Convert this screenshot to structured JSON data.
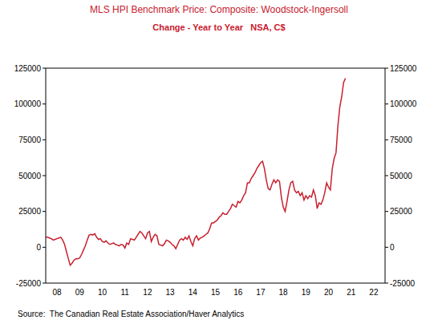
{
  "chart_data": {
    "type": "line",
    "title": "MLS HPI Benchmark Price: Composite: Woodstock-Ingersoll",
    "subtitle": "Change - Year to Year   NSA, C$",
    "source": "Source:  The Canadian Real Estate Association/Haver Analytics",
    "color": "#c8202e",
    "grid": false,
    "x": [
      2008,
      2008.083,
      2008.167,
      2008.25,
      2008.333,
      2008.417,
      2008.5,
      2008.583,
      2008.667,
      2008.75,
      2008.833,
      2008.917,
      2009,
      2009.083,
      2009.167,
      2009.25,
      2009.333,
      2009.417,
      2009.5,
      2009.583,
      2009.667,
      2009.75,
      2009.833,
      2009.917,
      2010,
      2010.083,
      2010.167,
      2010.25,
      2010.333,
      2010.417,
      2010.5,
      2010.583,
      2010.667,
      2010.75,
      2010.833,
      2010.917,
      2011,
      2011.083,
      2011.167,
      2011.25,
      2011.333,
      2011.417,
      2011.5,
      2011.583,
      2011.667,
      2011.75,
      2011.833,
      2011.917,
      2012,
      2012.083,
      2012.167,
      2012.25,
      2012.333,
      2012.417,
      2012.5,
      2012.583,
      2012.667,
      2012.75,
      2012.833,
      2012.917,
      2013,
      2013.083,
      2013.167,
      2013.25,
      2013.333,
      2013.417,
      2013.5,
      2013.583,
      2013.667,
      2013.75,
      2013.833,
      2013.917,
      2014,
      2014.083,
      2014.167,
      2014.25,
      2014.333,
      2014.417,
      2014.5,
      2014.583,
      2014.667,
      2014.75,
      2014.833,
      2014.917,
      2015,
      2015.083,
      2015.167,
      2015.25,
      2015.333,
      2015.417,
      2015.5,
      2015.583,
      2015.667,
      2015.75,
      2015.833,
      2015.917,
      2016,
      2016.083,
      2016.167,
      2016.25,
      2016.333,
      2016.417,
      2016.5,
      2016.583,
      2016.667,
      2016.75,
      2016.833,
      2016.917,
      2017,
      2017.083,
      2017.167,
      2017.25,
      2017.333,
      2017.417,
      2017.5,
      2017.583,
      2017.667,
      2017.75,
      2017.833,
      2017.917,
      2018,
      2018.083,
      2018.167,
      2018.25,
      2018.333,
      2018.417,
      2018.5,
      2018.583,
      2018.667,
      2018.75,
      2018.833,
      2018.917,
      2019,
      2019.083,
      2019.167,
      2019.25,
      2019.333,
      2019.417,
      2019.5,
      2019.583,
      2019.667,
      2019.75,
      2019.833,
      2019.917,
      2020,
      2020.083,
      2020.167,
      2020.25,
      2020.333,
      2020.417,
      2020.5,
      2020.583,
      2020.667,
      2020.75,
      2020.833,
      2020.917,
      2021,
      2021.083,
      2021.167,
      2021.25
    ],
    "values": [
      7000,
      7000,
      6500,
      6000,
      5000,
      5500,
      6000,
      6500,
      7000,
      5000,
      2000,
      -3000,
      -8000,
      -12500,
      -11000,
      -9000,
      -8000,
      -8000,
      -7500,
      -5000,
      -2000,
      1000,
      5000,
      8500,
      9000,
      8500,
      9500,
      7000,
      5500,
      6000,
      4000,
      3500,
      4500,
      3000,
      2000,
      2500,
      3000,
      2000,
      1500,
      1000,
      2000,
      1500,
      -500,
      3000,
      2000,
      6000,
      5500,
      5000,
      7000,
      9000,
      11000,
      10000,
      8000,
      6000,
      10000,
      11000,
      4000,
      7000,
      9000,
      8000,
      2000,
      1500,
      1000,
      2500,
      5000,
      4500,
      3500,
      2000,
      1000,
      -1000,
      2000,
      5000,
      6000,
      5000,
      7000,
      5500,
      8000,
      4000,
      1000,
      6000,
      8000,
      5000,
      6500,
      7000,
      8000,
      9000,
      10000,
      13000,
      17000,
      17000,
      18000,
      19000,
      21000,
      22000,
      24000,
      23000,
      23000,
      25000,
      27000,
      30000,
      29000,
      28000,
      32000,
      31000,
      33000,
      36000,
      38000,
      45000,
      45000,
      48000,
      50000,
      52000,
      55000,
      57000,
      59000,
      60000,
      55000,
      47000,
      41000,
      40000,
      44000,
      47000,
      45000,
      47000,
      46000,
      35000,
      28000,
      25000,
      32000,
      40000,
      45000,
      46000,
      40000,
      38000,
      39000,
      36000,
      38000,
      33000,
      36000,
      34000,
      36000,
      35000,
      40000,
      36000,
      27000,
      31000,
      30000,
      33000,
      38000,
      45000,
      42000,
      40000,
      55000,
      62000,
      66000,
      85000,
      98000,
      105000,
      115000,
      118000
    ],
    "xlim": [
      2008,
      2023
    ],
    "xticks": [
      {
        "value": 2008.5,
        "label": "08"
      },
      {
        "value": 2009.5,
        "label": "09"
      },
      {
        "value": 2010.5,
        "label": "10"
      },
      {
        "value": 2011.5,
        "label": "11"
      },
      {
        "value": 2012.5,
        "label": "12"
      },
      {
        "value": 2013.5,
        "label": "13"
      },
      {
        "value": 2014.5,
        "label": "14"
      },
      {
        "value": 2015.5,
        "label": "15"
      },
      {
        "value": 2016.5,
        "label": "16"
      },
      {
        "value": 2017.5,
        "label": "17"
      },
      {
        "value": 2018.5,
        "label": "18"
      },
      {
        "value": 2019.5,
        "label": "19"
      },
      {
        "value": 2020.5,
        "label": "20"
      },
      {
        "value": 2021.5,
        "label": "21"
      },
      {
        "value": 2022.5,
        "label": "22"
      }
    ],
    "ylim": [
      -25000,
      125000
    ],
    "yticks": [
      -25000,
      0,
      25000,
      50000,
      75000,
      100000,
      125000
    ]
  }
}
